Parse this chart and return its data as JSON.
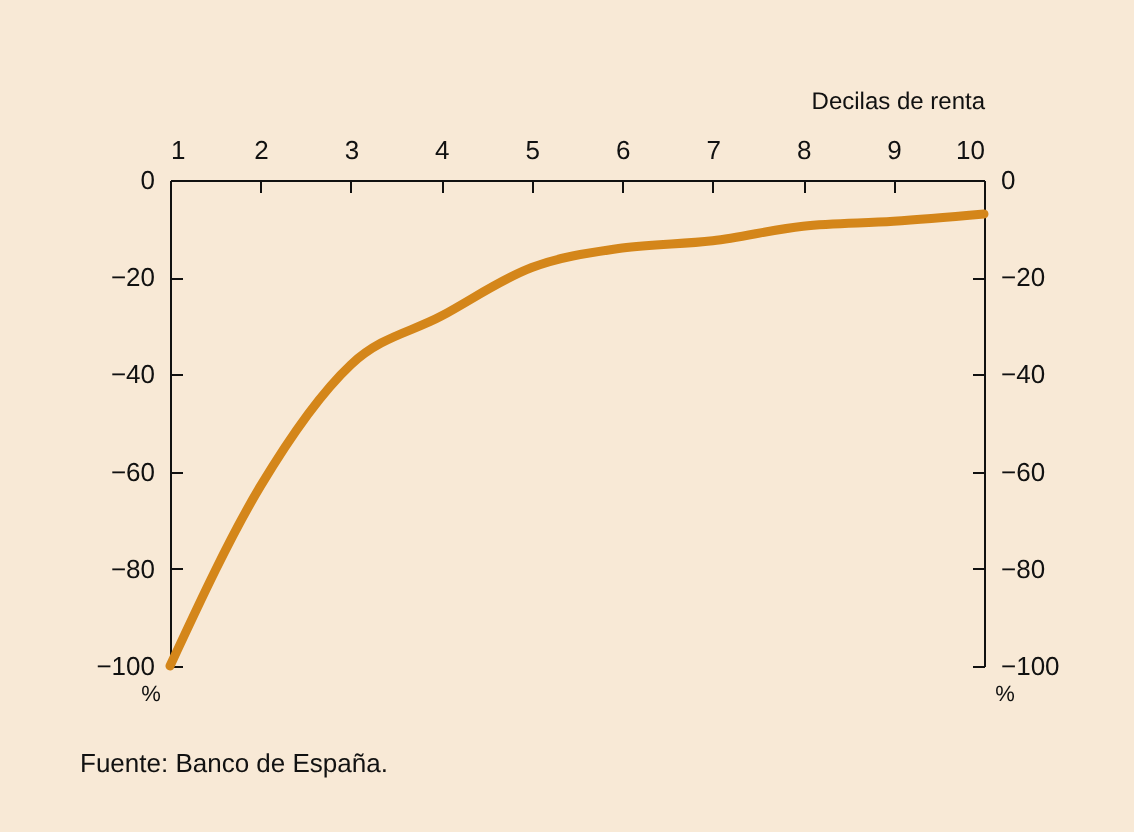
{
  "chart_data": {
    "type": "line",
    "xlabel": "Decilas de renta",
    "ylabel": "%",
    "y2label": "%",
    "annotations": [
      "Fuente: Banco de España."
    ],
    "x": [
      1,
      2,
      3,
      4,
      5,
      6,
      7,
      8,
      9,
      10
    ],
    "series": [
      {
        "color": "#d4861a",
        "values": [
          -100,
          -63,
          -38,
          -28,
          -18,
          -14,
          -12.5,
          -9.5,
          -8.5,
          -7
        ]
      }
    ],
    "xlim": [
      1,
      10
    ],
    "xticks": [
      1,
      2,
      3,
      4,
      5,
      6,
      7,
      8,
      9,
      10
    ],
    "ylim": [
      -100,
      0
    ],
    "yticks": [
      -100,
      -80,
      -60,
      -40,
      -20,
      0
    ],
    "y2lim": [
      -100,
      0
    ],
    "y2ticks": [
      -100,
      -80,
      -60,
      -40,
      -20,
      0
    ]
  }
}
